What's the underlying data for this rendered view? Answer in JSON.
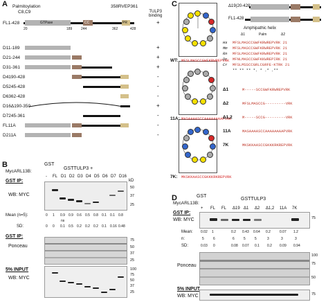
{
  "panel_labels": {
    "a": "A",
    "b": "B",
    "c": "C",
    "d": "D"
  },
  "panelA": {
    "palmitoylation": "Palmitoylation",
    "c8c9": "C8,C9",
    "rvep": "358RVEP361",
    "tulp3_binding": "TULP3\nbinding",
    "domains": {
      "gtpase": "GTPase",
      "cc": "CC",
      "pr": "PR"
    },
    "ticks": [
      "20",
      "189",
      "244",
      "362",
      "428"
    ],
    "constructs": [
      {
        "name": "FL1-428",
        "binding": "+"
      },
      {
        "name": "D11-189",
        "binding": "+"
      },
      {
        "name": "D21-244",
        "binding": "+"
      },
      {
        "name": "D31-361",
        "binding": "+"
      },
      {
        "name": "D4190-428",
        "binding": "-"
      },
      {
        "name": "D5245-428",
        "binding": "-"
      },
      {
        "name": "D6362-428",
        "binding": "-"
      },
      {
        "name": "D16Δ190-350",
        "binding": "+"
      },
      {
        "name": "D7245-361",
        "binding": "-"
      },
      {
        "name": "FL11A",
        "binding": "-"
      },
      {
        "name": "D211A",
        "binding": "-"
      }
    ]
  },
  "panelB": {
    "gst": "GST",
    "arl13b": "MycARL13B:",
    "gst_tulp3": "GSTTULP3 +",
    "lanes": [
      "-",
      "FL",
      "D1",
      "D2",
      "D3",
      "D4",
      "D5",
      "D6",
      "D7",
      "D16"
    ],
    "gst_ip": "GST IP:",
    "wb_myc": "WB: MYC",
    "kd": "kD",
    "kd_marks_1": [
      "50",
      "37",
      "25"
    ],
    "mean_label": "Mean (n=5):",
    "means": [
      "0",
      "1",
      "0.9",
      "0.9",
      "0.6",
      "0.5",
      "0.8",
      "0.1",
      "0.1",
      "0.8"
    ],
    "ns": "ns",
    "sd_label": "SD:",
    "sds": [
      "0",
      "0",
      "0.1",
      "0.5",
      "0.2",
      "0.2",
      "0.2",
      "0.1",
      "0.16",
      "0.48"
    ],
    "ponceau_ip": "GST IP:",
    "ponceau": "Ponceau",
    "kd_marks_2": [
      "75",
      "50",
      "37",
      "25"
    ],
    "input": "5% INPUT",
    "wb_myc2": "WB: MYC",
    "kd_marks_3": [
      "100",
      "75",
      "50",
      "37",
      "25"
    ]
  },
  "panelC": {
    "d19": "Δ19(20-428)",
    "fl": "FL1-428",
    "amph": "Amphipathic helix",
    "delta1": "Δ1",
    "delta2": "Δ2",
    "palm": "Palm",
    "wt_label": "WT:",
    "wt_seq": "MFSLMASCCGWFKRWREPVRK",
    "label_11a": "11A:",
    "seq_11a": "MASAAAASCCAAAAAAAAPVRK",
    "label_7k": "7K:",
    "seq_7k": "MKSKKAASCCGKKKRKREPVRK",
    "species": [
      {
        "sp": "Hs",
        "seq": "MFSLMASCCGWFKRWREPVRK 21"
      },
      {
        "sp": "Mm",
        "seq": "MFSLMASCCGWFKRWREPVRK 21"
      },
      {
        "sp": "Rn",
        "seq": "MFSLMASCCGWFKRWREPVRK 21"
      },
      {
        "sp": "Dr",
        "seq": "MFNLMASCCGWFKKWREPIRK 21"
      },
      {
        "sp": "Cr",
        "seq": "MFSLMSSCCGRLCGRFE-KTRK 21"
      }
    ],
    "conservation": "** ** ** *.   * .* .**",
    "mutants": [
      {
        "name": "Δ1",
        "seq": "M-----SCCGWFKRWREPVRK"
      },
      {
        "name": "Δ2",
        "seq": "MFSLMASCCG---------VRK"
      },
      {
        "name": "Δ1,2",
        "seq": "M-----SCCG---------VRK"
      },
      {
        "name": "11A",
        "seq": "MASAAAASCCAAAAAAAAPVRK"
      },
      {
        "name": "7K",
        "seq": "MKSKKAASCCGKKKRKREPVRK"
      }
    ]
  },
  "panelD": {
    "gst": "GST",
    "arl13b": "MycARL13B:",
    "gst_tulp3": "GSTTULP3",
    "lanes": [
      "+",
      "FL",
      "FL",
      "Δ19",
      "Δ1",
      "Δ2",
      "Δ1,2",
      "11A",
      "7K"
    ],
    "gst_ip": "GST IP:",
    "wb_myc": "WB: MYC",
    "kd_75": "75",
    "mean_label": "Mean:",
    "means": [
      "0.02",
      "1",
      "0.2",
      "0.43",
      "0.64",
      "0.2",
      "0.07",
      "1.2"
    ],
    "n_label": "n:",
    "ns": [
      "5",
      "6",
      "6",
      "5",
      "5",
      "3",
      "3",
      "3"
    ],
    "sd_label": "SD:",
    "sds": [
      "0.03",
      "0",
      "0.08",
      "0.07",
      "0.1",
      "0.2",
      "0.09",
      "0.94"
    ],
    "ponceau": "Ponceau",
    "kd_marks": [
      "100",
      "75",
      "50"
    ],
    "input": "5% INPUT",
    "wb_myc2": "WB: MYC",
    "kd_75b": "75"
  }
}
